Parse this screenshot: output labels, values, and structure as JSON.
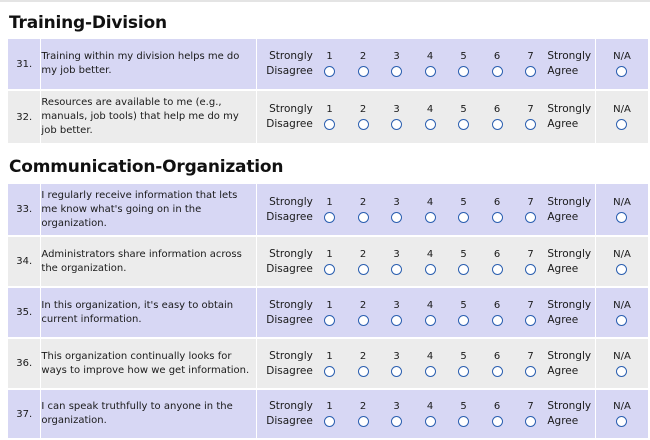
{
  "sections": [
    {
      "title": "Training-Division",
      "questions": [
        {
          "number": "31.",
          "text": "Training within my division helps me do my job better."
        },
        {
          "number": "32.",
          "text": "Resources are available to me (e.g., manuals, job tools) that help me do my job better."
        }
      ]
    },
    {
      "title": "Communication-Organization",
      "questions": [
        {
          "number": "33.",
          "text": "I regularly receive information that lets me know what's going on in the organization."
        },
        {
          "number": "34.",
          "text": "Administrators share information across the organization."
        },
        {
          "number": "35.",
          "text": "In this organization, it's easy to obtain current information."
        },
        {
          "number": "36.",
          "text": "This organization continually looks for ways to improve how we get information."
        },
        {
          "number": "37.",
          "text": "I can speak truthfully to anyone in the organization."
        }
      ]
    }
  ],
  "scale": {
    "left_anchor": [
      "Strongly",
      "Disagree"
    ],
    "right_anchor": [
      "Strongly",
      "Agree"
    ],
    "options": [
      "1",
      "2",
      "3",
      "4",
      "5",
      "6",
      "7"
    ],
    "na_label": "N/A"
  },
  "colors": {
    "row_odd": "#d7d7f4",
    "row_even": "#ececec",
    "radio_border": "#2b5fb0"
  }
}
